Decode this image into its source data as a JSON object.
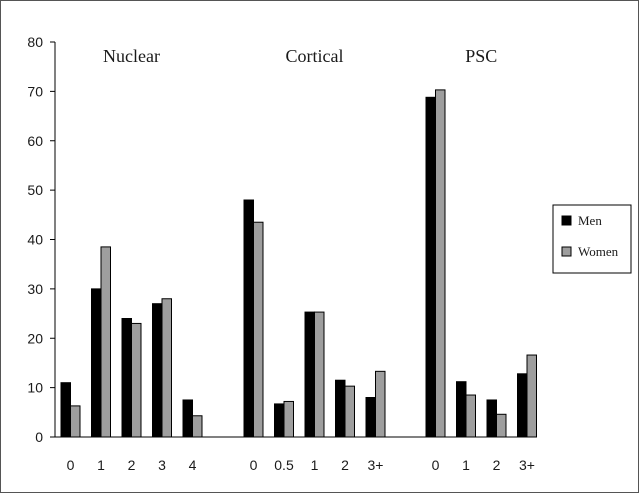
{
  "chart_data": {
    "type": "bar",
    "ylim": [
      0,
      80
    ],
    "y_ticks": [
      0,
      10,
      20,
      30,
      40,
      50,
      60,
      70,
      80
    ],
    "grid": false,
    "legend_position": "right",
    "series_colors": {
      "Men": "#000000",
      "Women": "#9e9e9e"
    },
    "legend": [
      "Men",
      "Women"
    ],
    "groups": [
      {
        "title": "Nuclear",
        "categories": [
          "0",
          "1",
          "2",
          "3",
          "4"
        ],
        "series": [
          {
            "name": "Men",
            "values": [
              11,
              30,
              24,
              27,
              7.5
            ]
          },
          {
            "name": "Women",
            "values": [
              6.3,
              38.5,
              23,
              28,
              4.3
            ]
          }
        ]
      },
      {
        "title": "Cortical",
        "categories": [
          "0",
          "0.5",
          "1",
          "2",
          "3+"
        ],
        "series": [
          {
            "name": "Men",
            "values": [
              48,
              6.7,
              25.3,
              11.5,
              8
            ]
          },
          {
            "name": "Women",
            "values": [
              43.5,
              7.2,
              25.3,
              10.3,
              13.3
            ]
          }
        ]
      },
      {
        "title": "PSC",
        "categories": [
          "0",
          "1",
          "2",
          "3+"
        ],
        "series": [
          {
            "name": "Men",
            "values": [
              68.8,
              11.2,
              7.5,
              12.8
            ]
          },
          {
            "name": "Women",
            "values": [
              70.3,
              8.5,
              4.6,
              16.6
            ]
          }
        ]
      }
    ]
  }
}
